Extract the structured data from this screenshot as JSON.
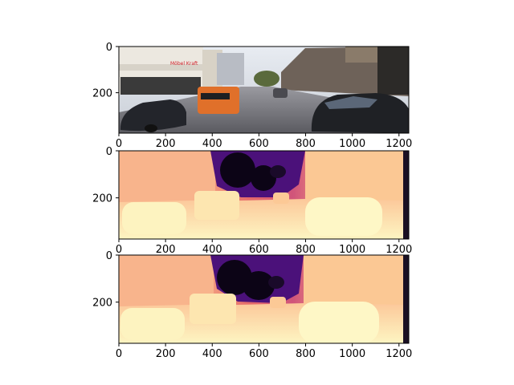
{
  "panels": [
    {
      "kind": "photo",
      "x_ticks": [
        "0",
        "200",
        "400",
        "600",
        "800",
        "1000",
        "1200"
      ],
      "y_ticks": [
        "0",
        "200"
      ]
    },
    {
      "kind": "depth",
      "x_ticks": [
        "0",
        "200",
        "400",
        "600",
        "800",
        "1000",
        "1200"
      ],
      "y_ticks": [
        "0",
        "200"
      ]
    },
    {
      "kind": "depth",
      "x_ticks": [
        "0",
        "200",
        "400",
        "600",
        "800",
        "1000",
        "1200"
      ],
      "y_ticks": [
        "0",
        "200"
      ]
    }
  ],
  "photo": {
    "store_sign": "Möbel Kraft"
  },
  "colors": {
    "magma_light": "#fcfdbf",
    "magma_mid": "#fb8761",
    "magma_dark": "#b73779",
    "magma_darkest": "#000004",
    "axis": "#000000"
  }
}
